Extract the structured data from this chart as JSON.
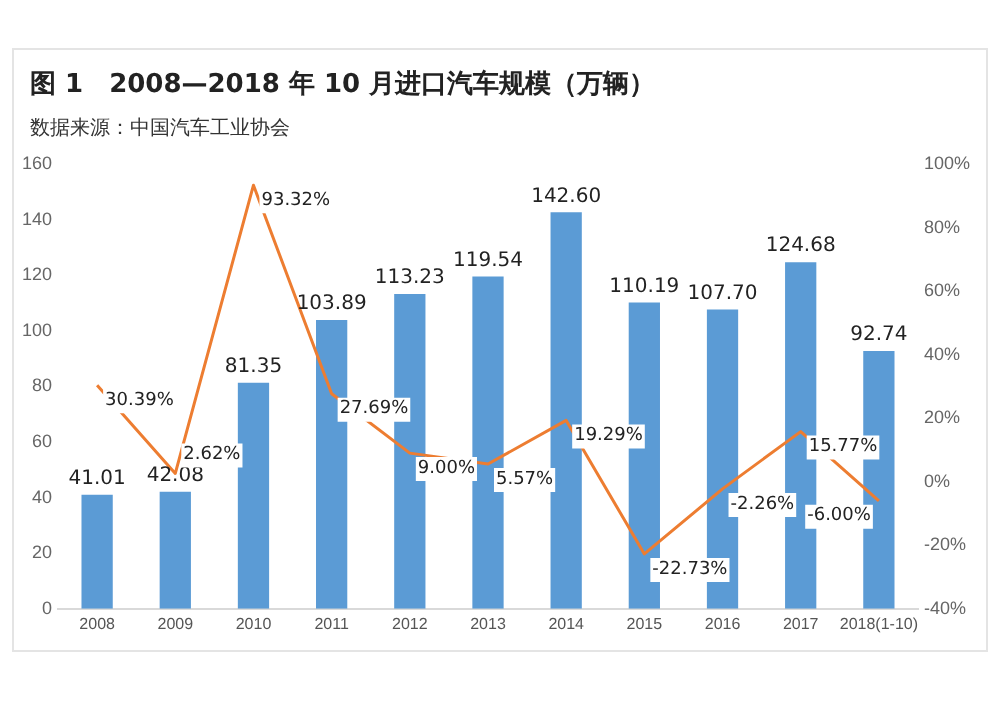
{
  "chart_data": {
    "type": "bar",
    "title": "图 1　2008—2018 年 10 月进口汽车规模（万辆）",
    "annotations": [
      "数据来源：中国汽车工业协会"
    ],
    "categories": [
      "2008",
      "2009",
      "2010",
      "2011",
      "2012",
      "2013",
      "2014",
      "2015",
      "2016",
      "2017",
      "2018(1-10)"
    ],
    "series": [
      {
        "type": "bar",
        "color": "#5b9bd5",
        "values": [
          41.01,
          42.08,
          81.35,
          103.89,
          113.23,
          119.54,
          142.6,
          110.19,
          107.7,
          124.68,
          92.74
        ],
        "value_labels": [
          "41.01",
          "42.08",
          "81.35",
          "103.89",
          "113.23",
          "119.54",
          "142.60",
          "110.19",
          "107.70",
          "124.68",
          "92.74"
        ]
      },
      {
        "type": "line",
        "axis": "y2",
        "color": "#ed7d31",
        "values": [
          30.39,
          2.62,
          93.32,
          27.69,
          9.0,
          5.57,
          19.29,
          -22.73,
          -2.26,
          15.77,
          -6.0
        ],
        "value_labels": [
          "30.39%",
          "2.62%",
          "93.32%",
          "27.69%",
          "9.00%",
          "5.57%",
          "19.29%",
          "-22.73%",
          "-2.26%",
          "15.77%",
          "-6.00%"
        ]
      }
    ],
    "ylim": [
      0,
      160
    ],
    "yticks": [
      0,
      20,
      40,
      60,
      80,
      100,
      120,
      140,
      160
    ],
    "y2lim": [
      -40,
      100
    ],
    "y2ticks": [
      {
        "value": -40,
        "label": "-40%"
      },
      {
        "value": -20,
        "label": "-20%"
      },
      {
        "value": 0,
        "label": "0%"
      },
      {
        "value": 20,
        "label": "20%"
      },
      {
        "value": 40,
        "label": "40%"
      },
      {
        "value": 60,
        "label": "60%"
      },
      {
        "value": 80,
        "label": "80%"
      },
      {
        "value": 100,
        "label": "100%"
      }
    ],
    "grid": false,
    "legend": false,
    "marker": "none"
  }
}
